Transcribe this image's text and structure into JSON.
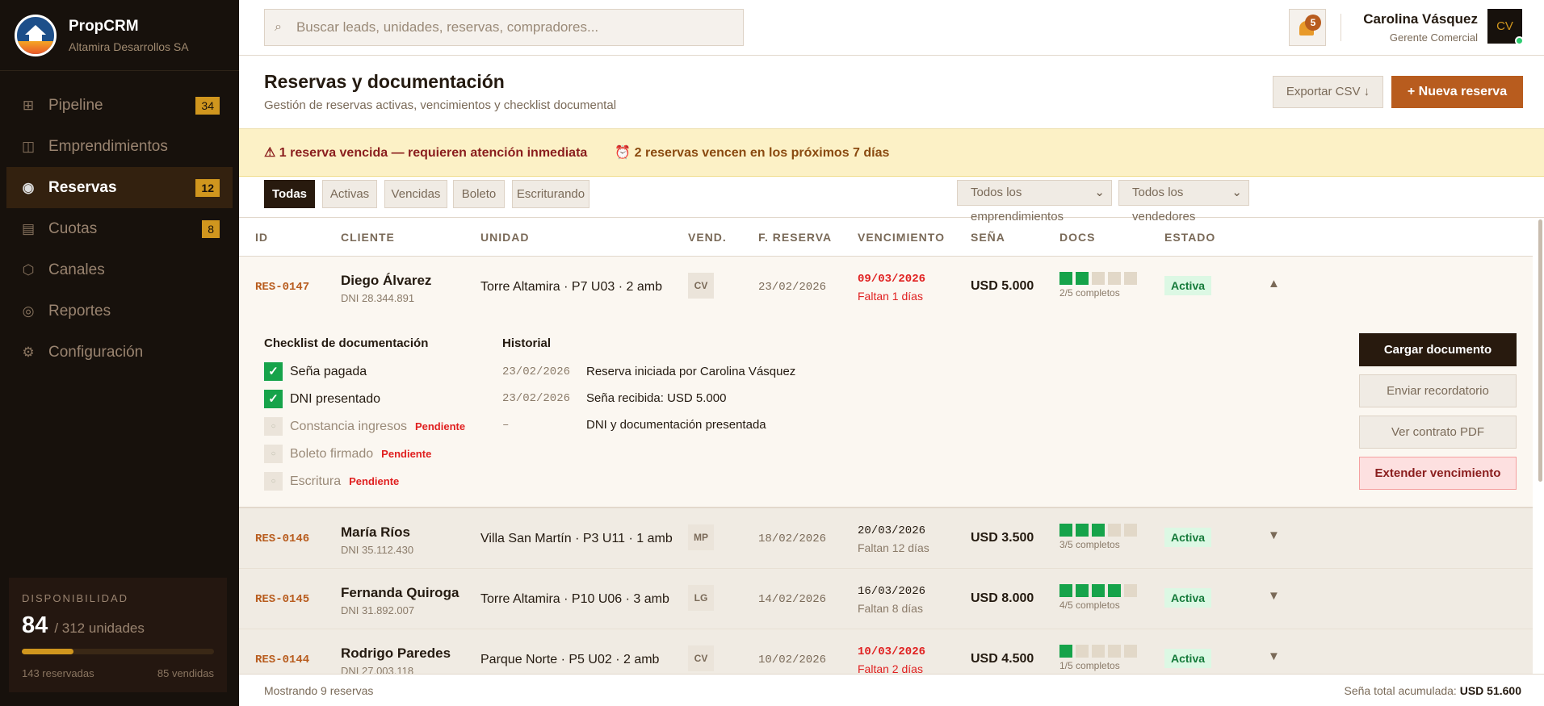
{
  "brand": {
    "name": "PropCRM",
    "company": "Altamira Desarrollos SA"
  },
  "nav": [
    {
      "label": "Pipeline",
      "icon": "grid-icon",
      "glyph": "⊞",
      "badge": "34"
    },
    {
      "label": "Emprendimientos",
      "icon": "columns-icon",
      "glyph": "◫",
      "badge": null
    },
    {
      "label": "Reservas",
      "icon": "reservation-icon",
      "glyph": "◉",
      "badge": "12",
      "active": true
    },
    {
      "label": "Cuotas",
      "icon": "list-icon",
      "glyph": "▤",
      "badge": "8"
    },
    {
      "label": "Canales",
      "icon": "hexagon-icon",
      "glyph": "⬡",
      "badge": null
    },
    {
      "label": "Reportes",
      "icon": "target-icon",
      "glyph": "◎",
      "badge": null
    },
    {
      "label": "Configuración",
      "icon": "gear-icon",
      "glyph": "⚙",
      "badge": null
    }
  ],
  "availability": {
    "label": "DISPONIBILIDAD",
    "available": "84",
    "total": "/ 312 unidades",
    "progress_pct": 27,
    "reserved": "143 reservadas",
    "sold": "85 vendidas"
  },
  "search": {
    "placeholder": "Buscar leads, unidades, reservas, compradores..."
  },
  "notifications": {
    "count": "5"
  },
  "user": {
    "name": "Carolina Vásquez",
    "role": "Gerente Comercial",
    "initials": "CV",
    "status_color": "#2ecc71"
  },
  "page": {
    "title": "Reservas y documentación",
    "subtitle": "Gestión de reservas activas, vencimientos y checklist documental",
    "export_label": "Exportar CSV ↓",
    "new_label": "+ Nueva reserva"
  },
  "alerts": {
    "overdue": "1 reserva vencida — requieren atención inmediata",
    "upcoming": "2 reservas vencen en los próximos 7 días"
  },
  "filters": {
    "tabs": [
      "Todas",
      "Activas",
      "Vencidas",
      "Boleto",
      "Escriturando"
    ],
    "active_tab": "Todas",
    "project_select": "Todos los emprendimientos",
    "seller_select": "Todos los vendedores"
  },
  "table": {
    "headers": [
      "ID",
      "CLIENTE",
      "UNIDAD",
      "VEND.",
      "F. RESERVA",
      "VENCIMIENTO",
      "SEÑA",
      "DOCS",
      "ESTADO"
    ],
    "rows": [
      {
        "id": "RES-0147",
        "client": "Diego Álvarez",
        "dni": "DNI 28.344.891",
        "unit": "Torre Altamira · P7 U03 · 2 amb",
        "seller": "CV",
        "date": "23/02/2026",
        "due": "09/03/2026",
        "due_note": "Faltan 1 días",
        "urgent": true,
        "deposit": "USD 5.000",
        "docs_done": 2,
        "docs_total": 5,
        "docs_label": "2/5 completos",
        "status": "Activa",
        "expanded": true
      },
      {
        "id": "RES-0146",
        "client": "María Ríos",
        "dni": "DNI 35.112.430",
        "unit": "Villa San Martín · P3 U11 · 1 amb",
        "seller": "MP",
        "date": "18/02/2026",
        "due": "20/03/2026",
        "due_note": "Faltan 12 días",
        "urgent": false,
        "deposit": "USD 3.500",
        "docs_done": 3,
        "docs_total": 5,
        "docs_label": "3/5 completos",
        "status": "Activa",
        "expanded": false
      },
      {
        "id": "RES-0145",
        "client": "Fernanda Quiroga",
        "dni": "DNI 31.892.007",
        "unit": "Torre Altamira · P10 U06 · 3 amb",
        "seller": "LG",
        "date": "14/02/2026",
        "due": "16/03/2026",
        "due_note": "Faltan 8 días",
        "urgent": false,
        "deposit": "USD 8.000",
        "docs_done": 4,
        "docs_total": 5,
        "docs_label": "4/5 completos",
        "status": "Activa",
        "expanded": false
      },
      {
        "id": "RES-0144",
        "client": "Rodrigo Paredes",
        "dni": "DNI 27.003.118",
        "unit": "Parque Norte · P5 U02 · 2 amb",
        "seller": "CV",
        "date": "10/02/2026",
        "due": "10/03/2026",
        "due_note": "Faltan 2 días",
        "urgent": true,
        "deposit": "USD 4.500",
        "docs_done": 1,
        "docs_total": 5,
        "docs_label": "1/5 completos",
        "status": "Activa",
        "expanded": false
      }
    ]
  },
  "detail": {
    "checklist_title": "Checklist de documentación",
    "checklist": [
      {
        "label": "Seña pagada",
        "done": true
      },
      {
        "label": "DNI presentado",
        "done": true
      },
      {
        "label": "Constancia ingresos",
        "done": false,
        "tag": "Pendiente"
      },
      {
        "label": "Boleto firmado",
        "done": false,
        "tag": "Pendiente"
      },
      {
        "label": "Escritura",
        "done": false,
        "tag": "Pendiente"
      }
    ],
    "history_title": "Historial",
    "history": [
      {
        "date": "23/02/2026",
        "text": "Reserva iniciada por Carolina Vásquez"
      },
      {
        "date": "23/02/2026",
        "text": "Seña recibida: USD 5.000"
      },
      {
        "date": "–",
        "text": "DNI y documentación presentada"
      }
    ],
    "actions": [
      "Cargar documento",
      "Enviar recordatorio",
      "Ver contrato PDF",
      "Extender vencimiento"
    ]
  },
  "footer": {
    "showing": "Mostrando 9 reservas",
    "total_label": "Seña total acumulada:",
    "total_value": "USD 51.600"
  }
}
